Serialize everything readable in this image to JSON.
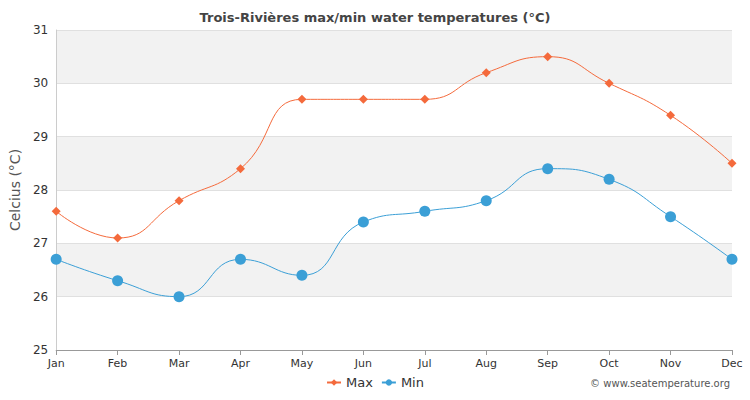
{
  "chart_data": {
    "type": "line",
    "title": "Trois-Rivières max/min water temperatures (°C)",
    "y_label": "Celcius (°C)",
    "annotations": [
      "© www.seatemperature.org"
    ],
    "categories": [
      "Jan",
      "Feb",
      "Mar",
      "Apr",
      "May",
      "Jun",
      "Jul",
      "Aug",
      "Sep",
      "Oct",
      "Nov",
      "Dec"
    ],
    "series": [
      {
        "name": "Max",
        "color": "#f46a3c",
        "marker": "diamond",
        "values": [
          27.6,
          27.1,
          27.8,
          28.4,
          29.7,
          29.7,
          29.7,
          30.2,
          30.5,
          30.0,
          29.4,
          28.5
        ]
      },
      {
        "name": "Min",
        "color": "#3b9fd6",
        "marker": "circle",
        "values": [
          26.7,
          26.3,
          26.0,
          26.7,
          26.4,
          27.4,
          27.6,
          27.8,
          28.4,
          28.2,
          27.5,
          26.7
        ]
      }
    ],
    "ylim": [
      25,
      31
    ],
    "yticks": [
      25,
      26,
      27,
      28,
      29,
      30,
      31
    ],
    "grid": true,
    "legend": "bottom"
  }
}
